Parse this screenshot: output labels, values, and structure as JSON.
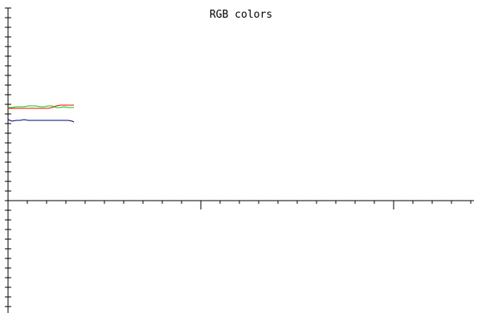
{
  "chart_data": {
    "type": "line",
    "title": "RGB colors",
    "xlabel": "",
    "ylabel": "",
    "xlim": [
      0,
      600
    ],
    "ylim": [
      -145,
      240
    ],
    "grid": false,
    "legend": "none",
    "x": [
      0,
      5,
      10,
      15,
      20,
      25,
      30,
      35,
      40,
      45,
      50,
      55,
      60,
      65,
      70,
      75,
      80,
      82
    ],
    "series": [
      {
        "color": "#ff0000",
        "values": [
          115,
          115,
          115,
          115,
          115,
          115,
          115,
          115,
          115,
          115,
          115,
          116,
          118,
          119,
          119,
          119,
          119,
          119
        ]
      },
      {
        "color": "#00cc00",
        "values": [
          116,
          116,
          117,
          117,
          117,
          118,
          118,
          118,
          117,
          117,
          118,
          118,
          116,
          116,
          117,
          116,
          116,
          116
        ]
      },
      {
        "color": "#000080",
        "values": [
          101,
          99,
          100,
          100,
          101,
          100,
          100,
          100,
          100,
          100,
          100,
          100,
          100,
          100,
          100,
          100,
          99,
          98
        ]
      }
    ]
  }
}
